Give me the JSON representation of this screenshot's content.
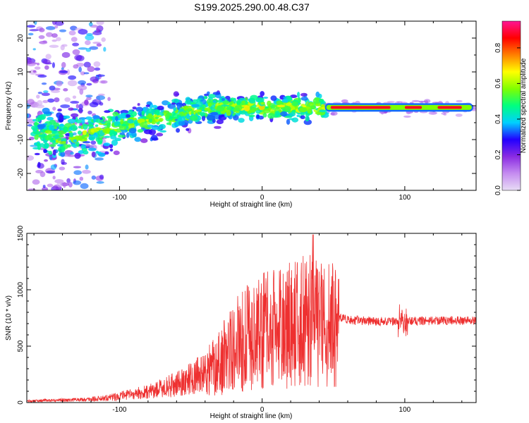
{
  "title": "S199.2025.290.00.48.C37",
  "chart_data": [
    {
      "type": "heatmap",
      "name": "spectrogram",
      "title": "S199.2025.290.00.48.C37",
      "xlabel": "Height of straight line (km)",
      "ylabel": "Frequency (Hz)",
      "xlim": [
        -165,
        150
      ],
      "ylim": [
        -25,
        25
      ],
      "xticks": [
        -100,
        0,
        100
      ],
      "xtick_labels": [
        "-100",
        "0",
        "100"
      ],
      "yticks": [
        -20,
        -10,
        0,
        10,
        20
      ],
      "ytick_labels": [
        "-20",
        "-10",
        "0",
        "10",
        "20"
      ],
      "colorbar": {
        "label": "Normalized spectral amplitude",
        "range": [
          0,
          0.95
        ],
        "ticks": [
          0.0,
          0.2,
          0.4,
          0.6,
          0.8
        ],
        "tick_labels": [
          "0.0",
          "0.2",
          "0.4",
          "0.6",
          "0.8"
        ],
        "colors": [
          "#e8ddf5",
          "#c58cf0",
          "#8a2be2",
          "#2200ff",
          "#00d0ff",
          "#00ff80",
          "#7fff00",
          "#ffff00",
          "#ff8000",
          "#ff0000",
          "#ff1493"
        ]
      }
    },
    {
      "type": "line",
      "name": "snr",
      "xlabel": "Height of straight line (km)",
      "ylabel": "SNR (10 * v/v)",
      "xlim": [
        -165,
        150
      ],
      "ylim": [
        0,
        1500
      ],
      "xticks": [
        -100,
        0,
        100
      ],
      "xtick_labels": [
        "-100",
        "0",
        "100"
      ],
      "yticks": [
        0,
        500,
        1000,
        1500
      ],
      "ytick_labels": [
        "0",
        "500",
        "1000",
        "1500"
      ],
      "color": "#ee3030",
      "envelope": {
        "x": [
          -165,
          -120,
          -100,
          -80,
          -60,
          -40,
          -30,
          -20,
          -10,
          0,
          10,
          20,
          30,
          40,
          54,
          60,
          80,
          100,
          120,
          150
        ],
        "y": [
          15,
          30,
          60,
          100,
          170,
          280,
          400,
          560,
          640,
          700,
          720,
          760,
          800,
          800,
          760,
          730,
          720,
          720,
          725,
          730
        ]
      }
    }
  ]
}
